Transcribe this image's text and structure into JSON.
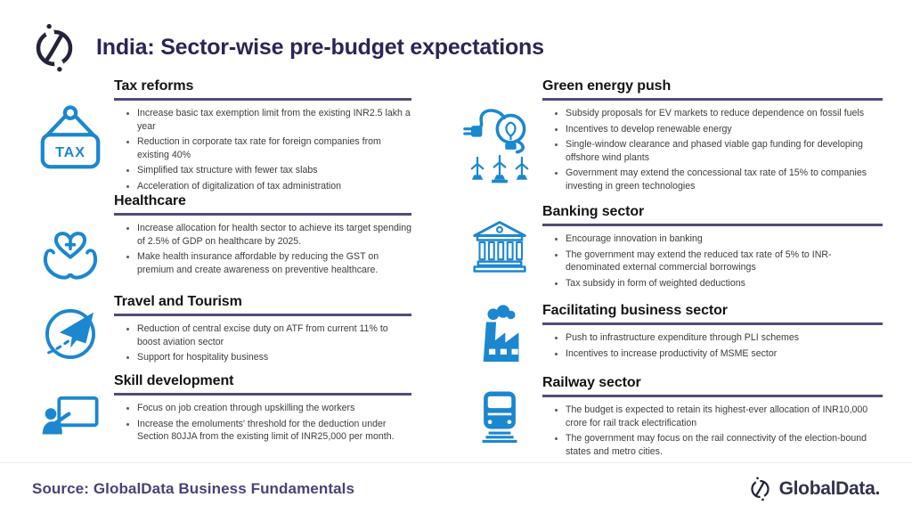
{
  "header": {
    "title": "India: Sector-wise pre-budget expectations"
  },
  "columns": {
    "left": [
      {
        "heading": "Tax reforms",
        "icon": "tax-tag-icon",
        "icon_text": "TAX",
        "bullets": [
          "Increase basic tax exemption limit from the existing INR2.5 lakh a year",
          "Reduction in corporate tax rate for foreign companies from existing 40%",
          "Simplified tax structure with fewer tax slabs",
          "Acceleration of digitalization of tax administration"
        ]
      },
      {
        "heading": "Healthcare",
        "icon": "healthcare-heart-hands-icon",
        "bullets": [
          "Increase allocation for health sector to achieve its target spending of 2.5% of GDP on healthcare by 2025.",
          "Make health insurance affordable by reducing the GST on premium and create awareness on preventive healthcare."
        ]
      },
      {
        "heading": "Travel and Tourism",
        "icon": "airplane-globe-icon",
        "bullets": [
          "Reduction of central excise duty on ATF from current 11% to boost aviation sector",
          "Support for hospitality business"
        ]
      },
      {
        "heading": "Skill development",
        "icon": "trainer-whiteboard-icon",
        "bullets": [
          "Focus on job creation through upskilling the workers",
          "Increase the emoluments' threshold for the deduction under Section 80JJA from the existing limit of INR25,000 per month."
        ]
      }
    ],
    "right": [
      {
        "heading": "Green energy push",
        "icon": "green-energy-bulb-icon",
        "bullets": [
          "Subsidy proposals for EV markets to reduce dependence on fossil fuels",
          "Incentives to develop renewable energy",
          "Single-window clearance and phased viable gap funding for developing offshore wind plants",
          "Government may extend the concessional tax rate of 15% to companies investing in green technologies"
        ]
      },
      {
        "heading": "Banking sector",
        "icon": "bank-building-icon",
        "bullets": [
          "Encourage innovation in banking",
          "The government may extend the reduced tax rate of 5% to INR-denominated external commercial borrowings",
          "Tax subsidy in form of weighted deductions"
        ]
      },
      {
        "heading": "Facilitating business sector",
        "icon": "factory-icon",
        "bullets": [
          "Push to infrastructure expenditure through PLI schemes",
          "Incentives to increase productivity of MSME sector"
        ]
      },
      {
        "heading": "Railway sector",
        "icon": "train-icon",
        "bullets": [
          "The budget is expected to retain its highest-ever allocation of INR10,000 crore for rail track electrification",
          "The government may focus on the rail connectivity of the election-bound states and metro cities."
        ]
      }
    ]
  },
  "footer": {
    "source": "Source: GlobalData Business Fundamentals",
    "brand": "GlobalData."
  },
  "colors": {
    "accent_blue": "#1b87cf",
    "heading_underline": "#54497a",
    "title_navy": "#2c2556",
    "body_text": "#3d3d3d",
    "source_purple": "#4c4178",
    "logo_dark": "#23233f"
  }
}
